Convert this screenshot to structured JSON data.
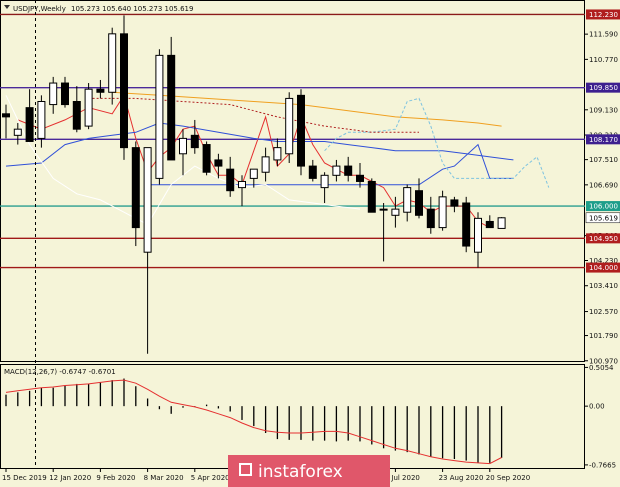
{
  "chart_data": {
    "type": "candlestick",
    "title": "USDJPY,Weekly",
    "ohlc_header": "105.273 105.640 105.273 105.619",
    "price_axis": {
      "min": 100.93,
      "max": 112.7,
      "ticks": [
        "111.590",
        "110.770",
        "109.130",
        "108.310",
        "107.510",
        "106.690",
        "105.040",
        "104.230",
        "103.410",
        "102.570",
        "101.790",
        "100.970"
      ],
      "tick_values": [
        111.59,
        110.77,
        109.13,
        108.31,
        107.51,
        106.69,
        105.04,
        104.23,
        103.41,
        102.57,
        101.79,
        100.97
      ]
    },
    "price_labels": [
      {
        "text": "112.230",
        "value": 112.23,
        "color": "#b01e1e"
      },
      {
        "text": "109.850",
        "value": 109.85,
        "color": "#3d1f8f"
      },
      {
        "text": "108.170",
        "value": 108.17,
        "color": "#3d1f8f"
      },
      {
        "text": "106.000",
        "value": 106.0,
        "color": "#1e9e8a"
      },
      {
        "text": "105.619",
        "value": 105.619,
        "color": "#ffffff",
        "text_color": "#000000"
      },
      {
        "text": "104.950",
        "value": 104.95,
        "color": "#b01e1e"
      },
      {
        "text": "104.000",
        "value": 104.0,
        "color": "#b01e1e"
      }
    ],
    "hlines": [
      {
        "value": 112.23,
        "color": "#8b1a1a"
      },
      {
        "value": 109.85,
        "color": "#4b2a9a"
      },
      {
        "value": 108.17,
        "color": "#4b2a9a"
      },
      {
        "value": 106.0,
        "color": "#2a9d8f"
      },
      {
        "value": 104.95,
        "color": "#a01818"
      },
      {
        "value": 104.0,
        "color": "#a01818"
      }
    ],
    "candles": [
      {
        "o": 109.0,
        "h": 109.3,
        "l": 108.2,
        "c": 108.9
      },
      {
        "o": 108.3,
        "h": 108.7,
        "l": 108.0,
        "c": 108.5
      },
      {
        "o": 109.2,
        "h": 109.8,
        "l": 108.1,
        "c": 108.1
      },
      {
        "o": 108.2,
        "h": 109.6,
        "l": 107.9,
        "c": 109.4
      },
      {
        "o": 109.3,
        "h": 110.2,
        "l": 109.0,
        "c": 110.0
      },
      {
        "o": 110.0,
        "h": 110.2,
        "l": 109.2,
        "c": 109.3
      },
      {
        "o": 109.4,
        "h": 109.9,
        "l": 108.4,
        "c": 108.5
      },
      {
        "o": 108.6,
        "h": 110.0,
        "l": 108.5,
        "c": 109.8
      },
      {
        "o": 109.8,
        "h": 110.1,
        "l": 109.5,
        "c": 109.7
      },
      {
        "o": 109.7,
        "h": 111.8,
        "l": 109.3,
        "c": 111.6
      },
      {
        "o": 111.6,
        "h": 112.2,
        "l": 107.5,
        "c": 107.9
      },
      {
        "o": 107.9,
        "h": 108.1,
        "l": 104.7,
        "c": 105.3
      },
      {
        "o": 104.5,
        "h": 107.9,
        "l": 101.2,
        "c": 107.9
      },
      {
        "o": 106.9,
        "h": 111.1,
        "l": 106.7,
        "c": 110.9
      },
      {
        "o": 110.9,
        "h": 111.5,
        "l": 107.5,
        "c": 107.5
      },
      {
        "o": 107.7,
        "h": 108.5,
        "l": 107.0,
        "c": 108.2
      },
      {
        "o": 108.3,
        "h": 108.8,
        "l": 107.7,
        "c": 107.9
      },
      {
        "o": 108.0,
        "h": 108.1,
        "l": 107.0,
        "c": 107.1
      },
      {
        "o": 107.5,
        "h": 107.7,
        "l": 106.9,
        "c": 107.3
      },
      {
        "o": 107.2,
        "h": 107.6,
        "l": 106.3,
        "c": 106.5
      },
      {
        "o": 106.6,
        "h": 107.0,
        "l": 106.0,
        "c": 106.8
      },
      {
        "o": 106.9,
        "h": 107.2,
        "l": 106.6,
        "c": 107.2
      },
      {
        "o": 107.1,
        "h": 107.9,
        "l": 106.8,
        "c": 107.6
      },
      {
        "o": 107.5,
        "h": 108.2,
        "l": 107.3,
        "c": 107.9
      },
      {
        "o": 107.7,
        "h": 109.7,
        "l": 107.4,
        "c": 109.5
      },
      {
        "o": 109.6,
        "h": 109.8,
        "l": 107.0,
        "c": 107.3
      },
      {
        "o": 107.3,
        "h": 107.5,
        "l": 106.8,
        "c": 106.9
      },
      {
        "o": 106.6,
        "h": 107.1,
        "l": 106.1,
        "c": 107.0
      },
      {
        "o": 107.0,
        "h": 107.5,
        "l": 106.8,
        "c": 107.3
      },
      {
        "o": 107.3,
        "h": 107.6,
        "l": 106.8,
        "c": 107.0
      },
      {
        "o": 107.0,
        "h": 107.4,
        "l": 106.6,
        "c": 106.8
      },
      {
        "o": 106.8,
        "h": 106.9,
        "l": 105.8,
        "c": 105.8
      },
      {
        "o": 105.9,
        "h": 106.1,
        "l": 104.2,
        "c": 105.9
      },
      {
        "o": 105.7,
        "h": 106.3,
        "l": 105.3,
        "c": 105.9
      },
      {
        "o": 105.8,
        "h": 106.7,
        "l": 105.5,
        "c": 106.6
      },
      {
        "o": 106.5,
        "h": 106.9,
        "l": 105.6,
        "c": 105.7
      },
      {
        "o": 105.9,
        "h": 106.3,
        "l": 105.1,
        "c": 105.3
      },
      {
        "o": 105.3,
        "h": 106.5,
        "l": 105.2,
        "c": 106.3
      },
      {
        "o": 106.2,
        "h": 106.3,
        "l": 105.8,
        "c": 106.0
      },
      {
        "o": 106.1,
        "h": 106.3,
        "l": 104.5,
        "c": 104.7
      },
      {
        "o": 104.5,
        "h": 105.8,
        "l": 104.0,
        "c": 105.6
      },
      {
        "o": 105.5,
        "h": 105.7,
        "l": 105.3,
        "c": 105.3
      },
      {
        "o": 105.273,
        "h": 105.64,
        "l": 105.273,
        "c": 105.619
      }
    ],
    "lines": [
      {
        "name": "red",
        "color": "#e53030",
        "points": [
          [
            1,
            108.8
          ],
          [
            3,
            108.5
          ],
          [
            5,
            108.8
          ],
          [
            7,
            109.2
          ],
          [
            9,
            109.0
          ],
          [
            10,
            109.6
          ],
          [
            11,
            108.2
          ],
          [
            12,
            107.1
          ],
          [
            13,
            107.6
          ],
          [
            14,
            107.9
          ],
          [
            15,
            108.5
          ],
          [
            16,
            108.6
          ],
          [
            17,
            107.7
          ],
          [
            18,
            107.0
          ],
          [
            19,
            107.0
          ],
          [
            20,
            106.7
          ],
          [
            21,
            107.8
          ],
          [
            22,
            108.9
          ],
          [
            23,
            107.3
          ],
          [
            24,
            107.7
          ],
          [
            25,
            108.9
          ],
          [
            26,
            108.0
          ],
          [
            27,
            107.4
          ],
          [
            28,
            107.2
          ],
          [
            29,
            107.0
          ],
          [
            30,
            107.0
          ],
          [
            31,
            106.8
          ],
          [
            32,
            106.6
          ],
          [
            33,
            106.0
          ],
          [
            34,
            106.2
          ],
          [
            35,
            106.1
          ],
          [
            36,
            105.8
          ],
          [
            37,
            106.0
          ],
          [
            38,
            106.0
          ],
          [
            39,
            106.0
          ],
          [
            40,
            105.5
          ],
          [
            41,
            105.3
          ]
        ]
      },
      {
        "name": "blue",
        "color": "#3050d8",
        "points": [
          [
            0,
            107.3
          ],
          [
            3,
            107.4
          ],
          [
            5,
            108.0
          ],
          [
            7,
            108.2
          ],
          [
            9,
            108.3
          ],
          [
            11,
            108.4
          ],
          [
            13,
            108.7
          ],
          [
            15,
            108.6
          ],
          [
            18,
            108.4
          ],
          [
            21,
            108.2
          ],
          [
            23,
            108.1
          ],
          [
            25,
            108.1
          ],
          [
            27,
            108.1
          ],
          [
            29,
            108.0
          ],
          [
            31,
            107.9
          ],
          [
            33,
            107.8
          ],
          [
            35,
            107.8
          ],
          [
            37,
            107.8
          ],
          [
            39,
            107.7
          ],
          [
            41,
            107.6
          ],
          [
            43,
            107.5
          ]
        ]
      },
      {
        "name": "blue-flat",
        "color": "#3050d8",
        "points": [
          [
            12,
            106.69
          ],
          [
            32,
            106.69
          ],
          [
            35,
            106.69
          ],
          [
            37,
            107.2
          ],
          [
            38,
            107.3
          ],
          [
            40,
            108.0
          ],
          [
            41,
            106.9
          ],
          [
            43,
            106.9
          ]
        ]
      },
      {
        "name": "orange",
        "color": "#f0a020",
        "points": [
          [
            9,
            109.7
          ],
          [
            13,
            109.6
          ],
          [
            17,
            109.5
          ],
          [
            21,
            109.4
          ],
          [
            25,
            109.3
          ],
          [
            29,
            109.1
          ],
          [
            33,
            108.9
          ],
          [
            37,
            108.8
          ],
          [
            40,
            108.7
          ],
          [
            42,
            108.6
          ]
        ]
      },
      {
        "name": "cloud-a",
        "color": "#7ec3e0",
        "dash": "3,2",
        "points": [
          [
            27,
            107.8
          ],
          [
            28,
            108.2
          ],
          [
            29,
            108.4
          ],
          [
            31,
            108.4
          ],
          [
            33,
            108.5
          ],
          [
            34,
            109.4
          ],
          [
            35,
            109.5
          ],
          [
            36,
            108.6
          ],
          [
            37,
            107.4
          ],
          [
            38,
            106.9
          ],
          [
            40,
            106.9
          ],
          [
            42,
            106.9
          ],
          [
            43,
            106.9
          ],
          [
            44,
            107.3
          ],
          [
            45,
            107.6
          ],
          [
            46,
            106.6
          ]
        ]
      },
      {
        "name": "cloud-b",
        "color": "#b02020",
        "dash": "2,2",
        "points": [
          [
            7,
            109.5
          ],
          [
            11,
            109.5
          ],
          [
            15,
            109.4
          ],
          [
            19,
            109.3
          ],
          [
            23,
            108.9
          ],
          [
            27,
            108.6
          ],
          [
            31,
            108.4
          ],
          [
            33,
            108.4
          ],
          [
            35,
            108.4
          ]
        ]
      },
      {
        "name": "white-chikou",
        "color": "#ffffff",
        "points": [
          [
            0,
            109.6
          ],
          [
            1,
            108.8
          ],
          [
            2,
            108.0
          ],
          [
            4,
            106.9
          ],
          [
            6,
            106.4
          ],
          [
            8,
            106.2
          ],
          [
            10,
            105.8
          ],
          [
            12,
            105.4
          ],
          [
            14,
            106.7
          ],
          [
            16,
            107.3
          ],
          [
            18,
            106.9
          ],
          [
            20,
            106.6
          ],
          [
            22,
            106.7
          ],
          [
            24,
            106.2
          ],
          [
            26,
            106.1
          ],
          [
            28,
            106.0
          ],
          [
            30,
            105.9
          ]
        ]
      }
    ],
    "macd": {
      "label": "MACD(12,26,7) -0.6747 -0.6701",
      "ticks": [
        "0.5054",
        "0.00",
        "-0.7665"
      ],
      "tick_values": [
        0.5054,
        0.0,
        -0.7665
      ],
      "min": -0.82,
      "max": 0.55,
      "histogram": [
        0.15,
        0.18,
        0.2,
        0.24,
        0.24,
        0.27,
        0.29,
        0.29,
        0.31,
        0.34,
        0.36,
        0.26,
        0.1,
        -0.04,
        -0.1,
        -0.02,
        -0.01,
        0.02,
        -0.03,
        -0.07,
        -0.18,
        -0.26,
        -0.35,
        -0.43,
        -0.44,
        -0.44,
        -0.45,
        -0.45,
        -0.46,
        -0.45,
        -0.46,
        -0.5,
        -0.55,
        -0.58,
        -0.6,
        -0.63,
        -0.66,
        -0.68,
        -0.69,
        -0.71,
        -0.74,
        -0.74,
        -0.6747
      ],
      "signal": [
        0.18,
        0.2,
        0.22,
        0.24,
        0.25,
        0.27,
        0.28,
        0.29,
        0.31,
        0.33,
        0.34,
        0.3,
        0.22,
        0.13,
        0.05,
        0.02,
        -0.01,
        -0.05,
        -0.1,
        -0.15,
        -0.22,
        -0.28,
        -0.32,
        -0.34,
        -0.35,
        -0.35,
        -0.34,
        -0.33,
        -0.33,
        -0.35,
        -0.4,
        -0.45,
        -0.5,
        -0.55,
        -0.58,
        -0.62,
        -0.66,
        -0.69,
        -0.71,
        -0.73,
        -0.74,
        -0.75,
        -0.6701
      ]
    },
    "x_labels": [
      {
        "text": "15 Dec 2019",
        "index": 0
      },
      {
        "text": "12 Jan 2020",
        "index": 4
      },
      {
        "text": "9 Feb 2020",
        "index": 8
      },
      {
        "text": "8 Mar 2020",
        "index": 12
      },
      {
        "text": "5 Apr 2020",
        "index": 16
      },
      {
        "text": "Jul 2020",
        "index": 33
      },
      {
        "text": "23 Aug 2020",
        "index": 37
      },
      {
        "text": "20 Sep 2020",
        "index": 41
      }
    ],
    "vertical_line_index": 2.5,
    "watermark": "instaforex"
  }
}
